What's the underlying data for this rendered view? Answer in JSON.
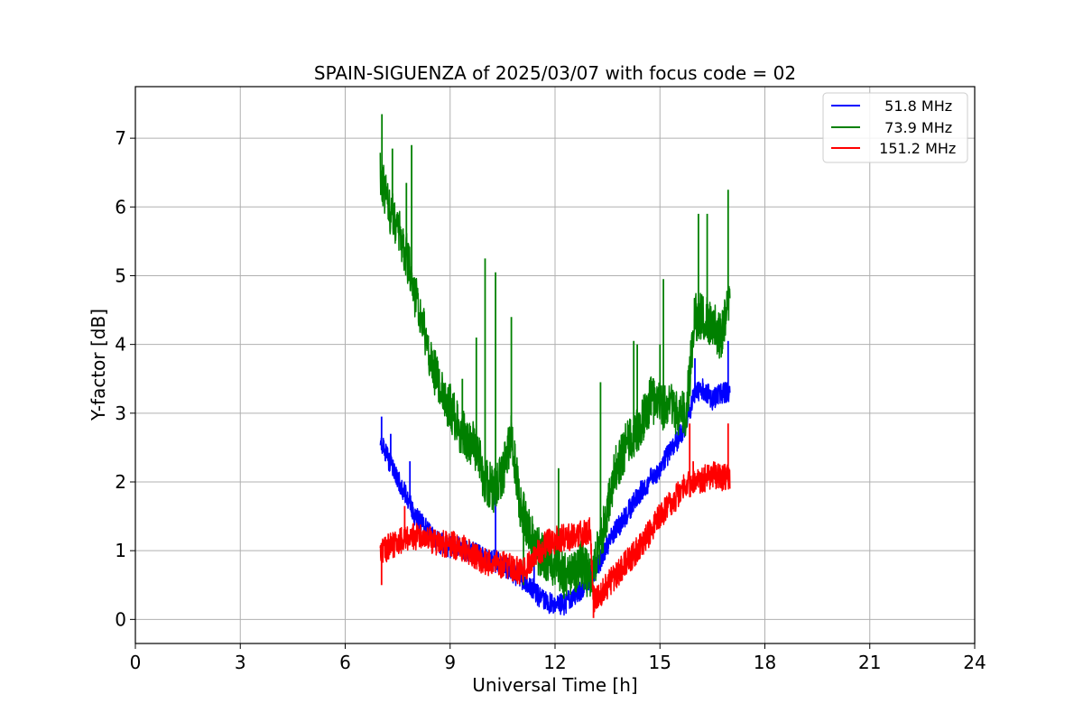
{
  "chart_data": {
    "type": "line",
    "title": "SPAIN-SIGUENZA of 2025/03/07 with focus code = 02",
    "xlabel": "Universal Time [h]",
    "ylabel": "Y-factor [dB]",
    "xlim": [
      0,
      24
    ],
    "ylim": [
      -0.35,
      7.75
    ],
    "xticks": [
      0,
      3,
      6,
      9,
      12,
      15,
      18,
      21,
      24
    ],
    "yticks": [
      0,
      1,
      2,
      3,
      4,
      5,
      6,
      7
    ],
    "grid": true,
    "legend_position": "top-right",
    "series": [
      {
        "name": "51.8 MHz",
        "label": "  51.8 MHz",
        "color": "#0000ff",
        "x": [
          7.0,
          7.25,
          7.5,
          7.75,
          8.0,
          8.25,
          8.5,
          8.75,
          9.0,
          9.25,
          9.5,
          9.75,
          10.0,
          10.25,
          10.5,
          10.75,
          11.0,
          11.25,
          11.5,
          11.75,
          12.0,
          12.25,
          12.5,
          12.75,
          13.0,
          13.25,
          13.5,
          13.75,
          14.0,
          14.25,
          14.5,
          14.75,
          15.0,
          15.25,
          15.5,
          15.75,
          16.0,
          16.25,
          16.5,
          16.75,
          17.0
        ],
        "values": [
          2.6,
          2.3,
          2.05,
          1.8,
          1.5,
          1.35,
          1.2,
          1.1,
          1.05,
          1.05,
          1.0,
          0.95,
          0.9,
          0.85,
          0.8,
          0.7,
          0.6,
          0.5,
          0.35,
          0.25,
          0.2,
          0.22,
          0.3,
          0.45,
          0.6,
          0.8,
          1.1,
          1.3,
          1.5,
          1.7,
          1.9,
          2.05,
          2.2,
          2.4,
          2.6,
          2.85,
          3.3,
          3.35,
          3.2,
          3.3,
          3.3
        ],
        "noise": 0.16,
        "spikes": [
          [
            7.04,
            2.95
          ],
          [
            7.3,
            2.7
          ],
          [
            7.85,
            2.3
          ],
          [
            10.3,
            1.9
          ],
          [
            11.4,
            1.2
          ],
          [
            16.0,
            3.8
          ],
          [
            16.95,
            4.05
          ]
        ]
      },
      {
        "name": "73.9 MHz",
        "label": "  73.9 MHz",
        "color": "#008000",
        "x": [
          7.0,
          7.25,
          7.5,
          7.75,
          8.0,
          8.25,
          8.5,
          8.75,
          9.0,
          9.25,
          9.5,
          9.75,
          10.0,
          10.25,
          10.5,
          10.75,
          11.0,
          11.25,
          11.5,
          11.75,
          12.0,
          12.25,
          12.5,
          12.75,
          13.0,
          13.25,
          13.5,
          13.75,
          14.0,
          14.25,
          14.5,
          14.75,
          15.0,
          15.25,
          15.5,
          15.75,
          16.0,
          16.25,
          16.5,
          16.75,
          17.0
        ],
        "values": [
          6.5,
          6.0,
          5.7,
          5.3,
          4.7,
          4.2,
          3.7,
          3.3,
          3.1,
          2.8,
          2.6,
          2.5,
          2.0,
          1.9,
          2.1,
          2.7,
          1.7,
          1.3,
          1.0,
          0.9,
          0.8,
          0.6,
          0.7,
          0.8,
          0.6,
          1.0,
          1.6,
          2.2,
          2.5,
          2.7,
          2.9,
          3.2,
          3.1,
          3.1,
          3.0,
          3.0,
          4.4,
          4.4,
          4.3,
          4.1,
          4.6
        ],
        "noise": 0.35,
        "spikes": [
          [
            7.05,
            7.35
          ],
          [
            7.35,
            6.85
          ],
          [
            7.75,
            6.35
          ],
          [
            7.9,
            6.9
          ],
          [
            9.35,
            3.5
          ],
          [
            9.75,
            4.1
          ],
          [
            10.0,
            5.25
          ],
          [
            10.3,
            5.05
          ],
          [
            10.75,
            4.4
          ],
          [
            11.1,
            0.5
          ],
          [
            11.15,
            1.65
          ],
          [
            12.1,
            2.2
          ],
          [
            12.25,
            0.3
          ],
          [
            13.3,
            3.45
          ],
          [
            14.25,
            4.05
          ],
          [
            14.35,
            4.0
          ],
          [
            15.0,
            4.0
          ],
          [
            15.1,
            4.95
          ],
          [
            16.1,
            5.9
          ],
          [
            16.35,
            5.9
          ],
          [
            16.95,
            6.25
          ]
        ]
      },
      {
        "name": "151.2 MHz",
        "label": "  151.2 MHz",
        "color": "#ff0000",
        "x": [
          7.0,
          7.25,
          7.5,
          7.75,
          8.0,
          8.25,
          8.5,
          8.75,
          9.0,
          9.25,
          9.5,
          9.75,
          10.0,
          10.25,
          10.5,
          10.75,
          11.0,
          11.25,
          11.5,
          11.75,
          12.0,
          12.25,
          12.5,
          12.75,
          13.0,
          13.1,
          13.25,
          13.5,
          13.75,
          14.0,
          14.25,
          14.5,
          14.75,
          15.0,
          15.25,
          15.5,
          15.75,
          16.0,
          16.25,
          16.5,
          16.75,
          17.0
        ],
        "values": [
          1.0,
          1.05,
          1.1,
          1.2,
          1.2,
          1.2,
          1.15,
          1.1,
          1.1,
          1.05,
          1.0,
          0.9,
          0.85,
          0.8,
          0.8,
          0.75,
          0.7,
          0.8,
          0.95,
          1.1,
          1.15,
          1.2,
          1.2,
          1.25,
          1.3,
          0.3,
          0.35,
          0.5,
          0.65,
          0.8,
          0.95,
          1.1,
          1.3,
          1.5,
          1.65,
          1.8,
          1.95,
          2.0,
          2.05,
          2.1,
          2.05,
          2.1
        ],
        "noise": 0.2,
        "spikes": [
          [
            7.04,
            0.5
          ],
          [
            7.7,
            1.65
          ],
          [
            13.1,
            0.02
          ],
          [
            15.85,
            2.85
          ],
          [
            15.95,
            2.3
          ],
          [
            16.95,
            2.85
          ]
        ]
      }
    ]
  }
}
